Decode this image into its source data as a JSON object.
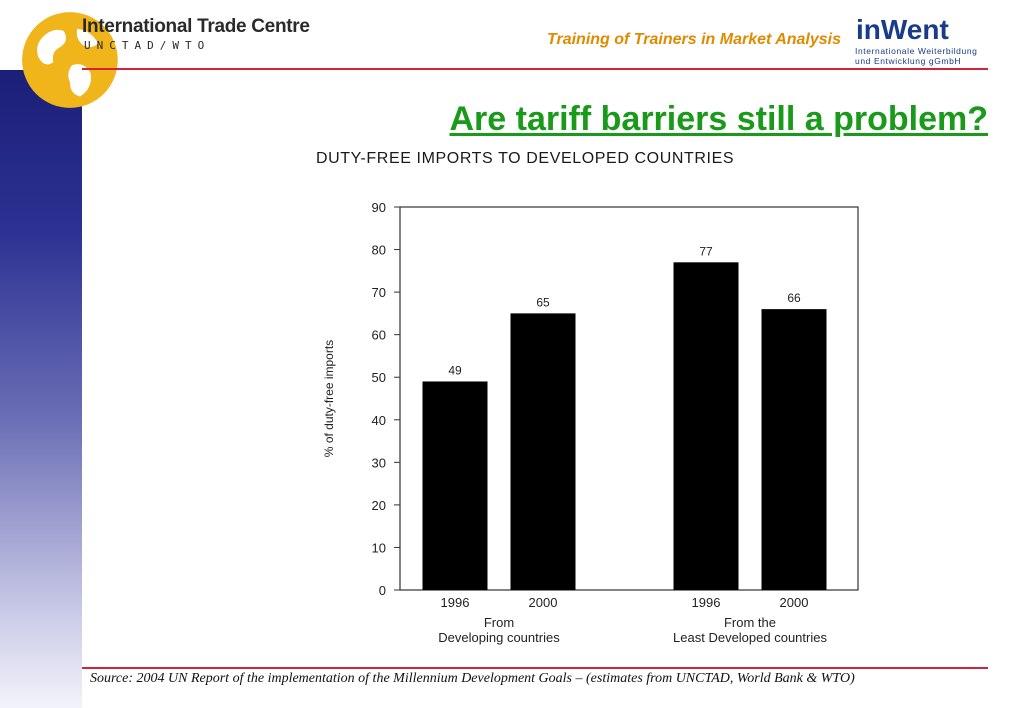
{
  "header": {
    "org_name": "International Trade Centre",
    "org_sub": "UNCTAD/WTO",
    "training_title": "Training of  Trainers in Market Analysis",
    "inwent_brand": "inWent",
    "inwent_sub_line1": "Internationale Weiterbildung",
    "inwent_sub_line2": "und Entwicklung gGmbH"
  },
  "slide": {
    "title": "Are tariff barriers still a problem?",
    "source": "Source: 2004 UN Report of the implementation of the Millennium Development Goals – (estimates from UNCTAD, World Bank & WTO)"
  },
  "colors": {
    "title_green": "#1a9a1a",
    "accent_orange": "#e08a00",
    "rule_red": "#d0243c",
    "sidebar_blue": "#1c1f78",
    "bar_fill": "#000000"
  },
  "chart_data": {
    "type": "bar",
    "title": "Duty-free imports to developed countries",
    "ylabel": "% of duty-free imports",
    "ylim": [
      0,
      90
    ],
    "yticks": [
      0,
      10,
      20,
      30,
      40,
      50,
      60,
      70,
      80,
      90
    ],
    "groups": [
      {
        "label_line1": "From",
        "label_line2": "Developing countries",
        "categories": [
          "1996",
          "2000"
        ],
        "values": [
          49,
          65
        ]
      },
      {
        "label_line1": "From the",
        "label_line2": "Least Developed countries",
        "categories": [
          "1996",
          "2000"
        ],
        "values": [
          77,
          66
        ]
      }
    ],
    "data_labels": [
      "49",
      "65",
      "77",
      "66"
    ]
  }
}
